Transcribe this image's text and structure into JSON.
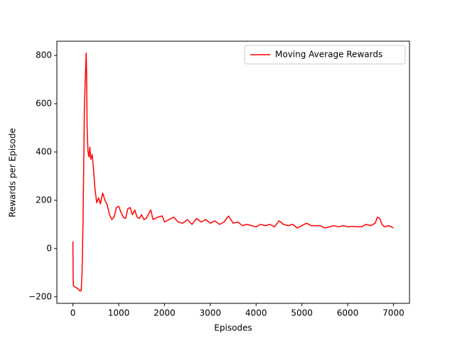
{
  "chart_data": {
    "type": "line",
    "xlabel": "Episodes",
    "ylabel": "Rewards per Episode",
    "x": [
      0,
      5,
      10,
      50,
      100,
      150,
      180,
      200,
      220,
      240,
      250,
      270,
      290,
      300,
      310,
      330,
      350,
      370,
      390,
      420,
      450,
      480,
      520,
      560,
      600,
      650,
      700,
      750,
      800,
      850,
      900,
      950,
      1000,
      1050,
      1100,
      1150,
      1200,
      1250,
      1300,
      1350,
      1400,
      1450,
      1500,
      1550,
      1600,
      1700,
      1750,
      1850,
      1950,
      2000,
      2100,
      2200,
      2300,
      2400,
      2500,
      2600,
      2700,
      2800,
      2900,
      3000,
      3100,
      3200,
      3300,
      3400,
      3500,
      3600,
      3700,
      3800,
      3900,
      4000,
      4100,
      4200,
      4300,
      4400,
      4500,
      4600,
      4700,
      4800,
      4900,
      5000,
      5100,
      5200,
      5300,
      5400,
      5500,
      5600,
      5700,
      5800,
      5900,
      6000,
      6100,
      6200,
      6300,
      6400,
      6500,
      6600,
      6650,
      6700,
      6750,
      6800,
      6900,
      7000
    ],
    "series": [
      {
        "name": "Moving Average Rewards",
        "color": "#ff0000",
        "values": [
          30,
          -120,
          -155,
          -160,
          -165,
          -175,
          -175,
          -100,
          100,
          400,
          580,
          700,
          810,
          720,
          500,
          400,
          380,
          420,
          370,
          390,
          330,
          250,
          190,
          210,
          185,
          230,
          200,
          180,
          140,
          120,
          130,
          170,
          175,
          150,
          130,
          125,
          165,
          170,
          140,
          160,
          130,
          125,
          140,
          120,
          125,
          160,
          120,
          130,
          135,
          110,
          120,
          130,
          110,
          105,
          120,
          100,
          125,
          110,
          120,
          105,
          115,
          100,
          110,
          135,
          105,
          110,
          95,
          100,
          95,
          90,
          100,
          95,
          100,
          90,
          115,
          100,
          95,
          100,
          85,
          95,
          105,
          95,
          95,
          95,
          85,
          90,
          95,
          90,
          95,
          90,
          92,
          90,
          90,
          100,
          95,
          105,
          130,
          125,
          100,
          90,
          95,
          85
        ]
      }
    ],
    "xlim": [
      -350,
      7350
    ],
    "ylim": [
      -227,
      859
    ],
    "xticks": [
      0,
      1000,
      2000,
      3000,
      4000,
      5000,
      6000,
      7000
    ],
    "yticks": [
      {
        "value": -200,
        "label": "−200"
      },
      0,
      200,
      400,
      600,
      800
    ],
    "legend": "upper right"
  }
}
